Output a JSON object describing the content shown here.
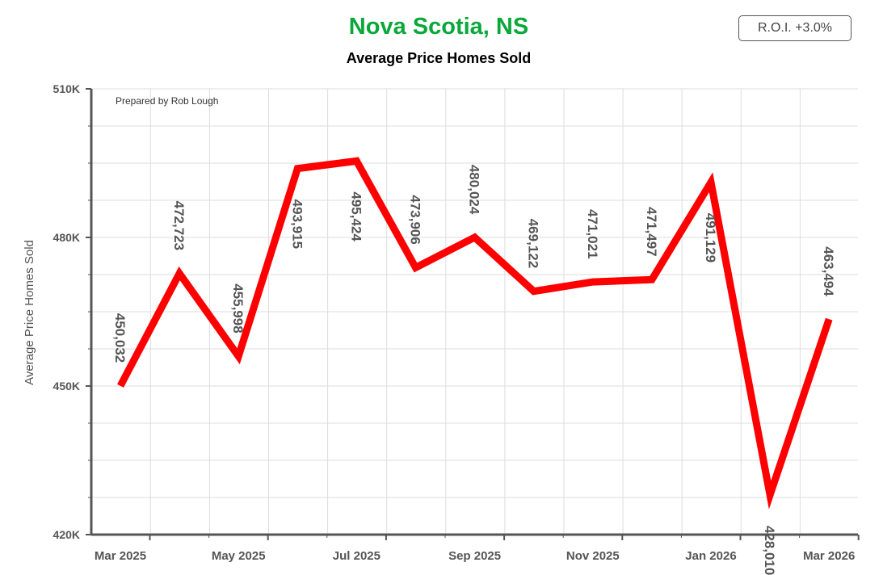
{
  "colors": {
    "title": "#0aa83a",
    "line": "#ff0000",
    "grid": "#dddddd",
    "axis": "#555555",
    "text": "#555555"
  },
  "roi_label": "R.O.I. +3.0%",
  "prepared_by": "Prepared by Rob Lough",
  "chart_data": {
    "type": "line",
    "title": "Nova Scotia, NS",
    "subtitle": "Average Price Homes Sold",
    "ylabel": "Average Price Homes Sold",
    "xlabel": "",
    "ylim": [
      420000,
      510000
    ],
    "y_ticks": [
      420000,
      450000,
      480000,
      510000
    ],
    "y_tick_labels": [
      "420K",
      "450K",
      "480K",
      "510K"
    ],
    "x_tick_labels": [
      "Mar 2025",
      "May 2025",
      "Jul 2025",
      "Sep 2025",
      "Nov 2025",
      "Jan 2026",
      "Mar 2026"
    ],
    "categories": [
      "Mar 2025",
      "Apr 2025",
      "May 2025",
      "Jun 2025",
      "Jul 2025",
      "Aug 2025",
      "Sep 2025",
      "Oct 2025",
      "Nov 2025",
      "Dec 2025",
      "Jan 2026",
      "Feb 2026",
      "Mar 2026"
    ],
    "values": [
      450032,
      472723,
      455998,
      493915,
      495424,
      473906,
      480024,
      469122,
      471021,
      471497,
      491129,
      428010,
      463494
    ],
    "data_labels": [
      "450,032",
      "472,723",
      "455,998",
      "493,915",
      "495,424",
      "473,906",
      "480,024",
      "469,122",
      "471,021",
      "471,497",
      "491,129",
      "428,010",
      "463,494"
    ],
    "grid": true
  }
}
